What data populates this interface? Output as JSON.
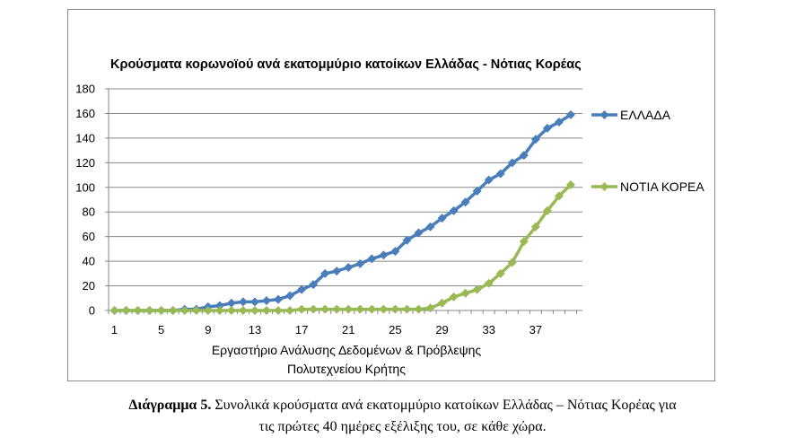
{
  "chart_data": {
    "type": "line",
    "title": "Κρούσματα κορωνοϊού ανά εκατομμύριο κατοίκων Ελλάδας - Νότιας Κορέας",
    "xlabel_lines": [
      "Εργαστήριο Ανάλυσης Δεδομένων & Πρόβλεψης",
      "Πολυτεχνείου Κρήτης"
    ],
    "ylabel": "",
    "ylim": [
      0,
      180
    ],
    "yticks": [
      0,
      20,
      40,
      60,
      80,
      100,
      120,
      140,
      160,
      180
    ],
    "xlim": [
      1,
      40
    ],
    "xticks": [
      1,
      5,
      9,
      13,
      17,
      21,
      25,
      29,
      33,
      37
    ],
    "legend_position": "right",
    "grid": true,
    "x": [
      1,
      2,
      3,
      4,
      5,
      6,
      7,
      8,
      9,
      10,
      11,
      12,
      13,
      14,
      15,
      16,
      17,
      18,
      19,
      20,
      21,
      22,
      23,
      24,
      25,
      26,
      27,
      28,
      29,
      30,
      31,
      32,
      33,
      34,
      35,
      36,
      37,
      38,
      39,
      40
    ],
    "series": [
      {
        "name": "ΕΛΛΑΔΑ",
        "color": "#4a7ebb",
        "values": [
          0,
          0,
          0,
          0,
          0,
          0,
          1,
          1,
          3,
          4,
          6,
          7,
          7,
          8,
          9,
          12,
          17,
          21,
          30,
          32,
          35,
          38,
          42,
          45,
          48,
          57,
          63,
          68,
          75,
          81,
          88,
          97,
          106,
          111,
          120,
          126,
          139,
          148,
          153,
          159
        ]
      },
      {
        "name": "ΝΟΤΙΑ ΚΟΡΕΑ",
        "color": "#98b954",
        "values": [
          0,
          0,
          0,
          0,
          0,
          0,
          0,
          0,
          0,
          0,
          0,
          0,
          0,
          0,
          0,
          0,
          1,
          1,
          1,
          1,
          1,
          1,
          1,
          1,
          1,
          1,
          1,
          2,
          6,
          11,
          14,
          17,
          22,
          30,
          39,
          56,
          68,
          81,
          93,
          102
        ]
      }
    ]
  },
  "caption": {
    "label": "Διάγραμμα 5.",
    "text": " Συνολικά κρούσματα ανά εκατομμύριο κατοίκων Ελλάδας – Νότιας Κορέας για",
    "line2": "τις πρώτες 40 ημέρες εξέλιξης του, σε κάθε χώρα."
  }
}
